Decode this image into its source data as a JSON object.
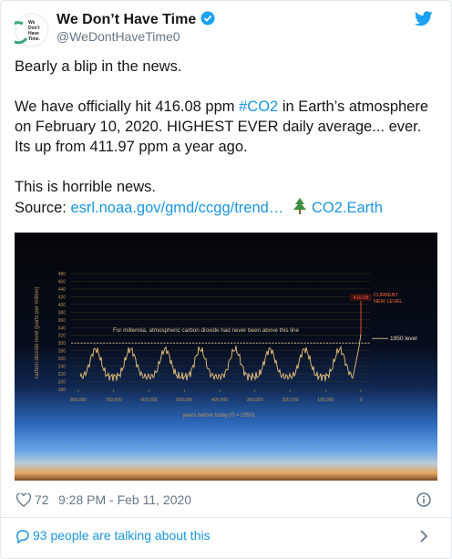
{
  "tweet": {
    "author": {
      "name": "We Don’t Have Time",
      "handle": "@WeDontHaveTime0",
      "avatar_text": [
        "We",
        "Don't",
        "Have",
        "Time."
      ]
    },
    "paragraphs": [
      [
        "Bearly a blip in the news."
      ],
      [
        "We have officially hit 416.08 ppm ",
        "#CO2",
        " in Earth’s atmosphere on February 10, 2020. HIGHEST EVER daily average... ever. Its up from 411.97 ppm a year ago."
      ],
      [
        "This is horrible news."
      ],
      [
        "Source: ",
        "esrl.noaa.gov/gmd/ccgg/trend…",
        "CO2.Earth"
      ]
    ],
    "image": {
      "ylabel": "carbon dioxide level (parts per million)",
      "xlabel": "years before today (0 = 1950)",
      "annotation": "For millennia, atmospheric carbon dioxide had never been above this line",
      "level_1950": "1950 level",
      "current_value": "416.08",
      "current_label": [
        "CURRENT",
        "NEW LEVEL"
      ],
      "ylim": [
        180,
        480
      ],
      "yticks": [
        180,
        200,
        220,
        240,
        260,
        280,
        300,
        320,
        340,
        360,
        380,
        400,
        420,
        440,
        460,
        480
      ],
      "xlim": [
        800000,
        0
      ],
      "xticks": [
        {
          "value": 800000,
          "label": "800,000"
        },
        {
          "value": 700000,
          "label": "700,000"
        },
        {
          "value": 600000,
          "label": "600,000"
        },
        {
          "value": 500000,
          "label": "500,000"
        },
        {
          "value": 400000,
          "label": "400,000"
        },
        {
          "value": 300000,
          "label": "300,000"
        },
        {
          "value": 200000,
          "label": "200,000"
        },
        {
          "value": 100000,
          "label": "100,000"
        },
        0
      ],
      "threshold": 300,
      "current": 416.08
    },
    "likes": "72",
    "timestamp": "9:28 PM - Feb 11, 2020",
    "talking": "93 people are talking about this"
  }
}
